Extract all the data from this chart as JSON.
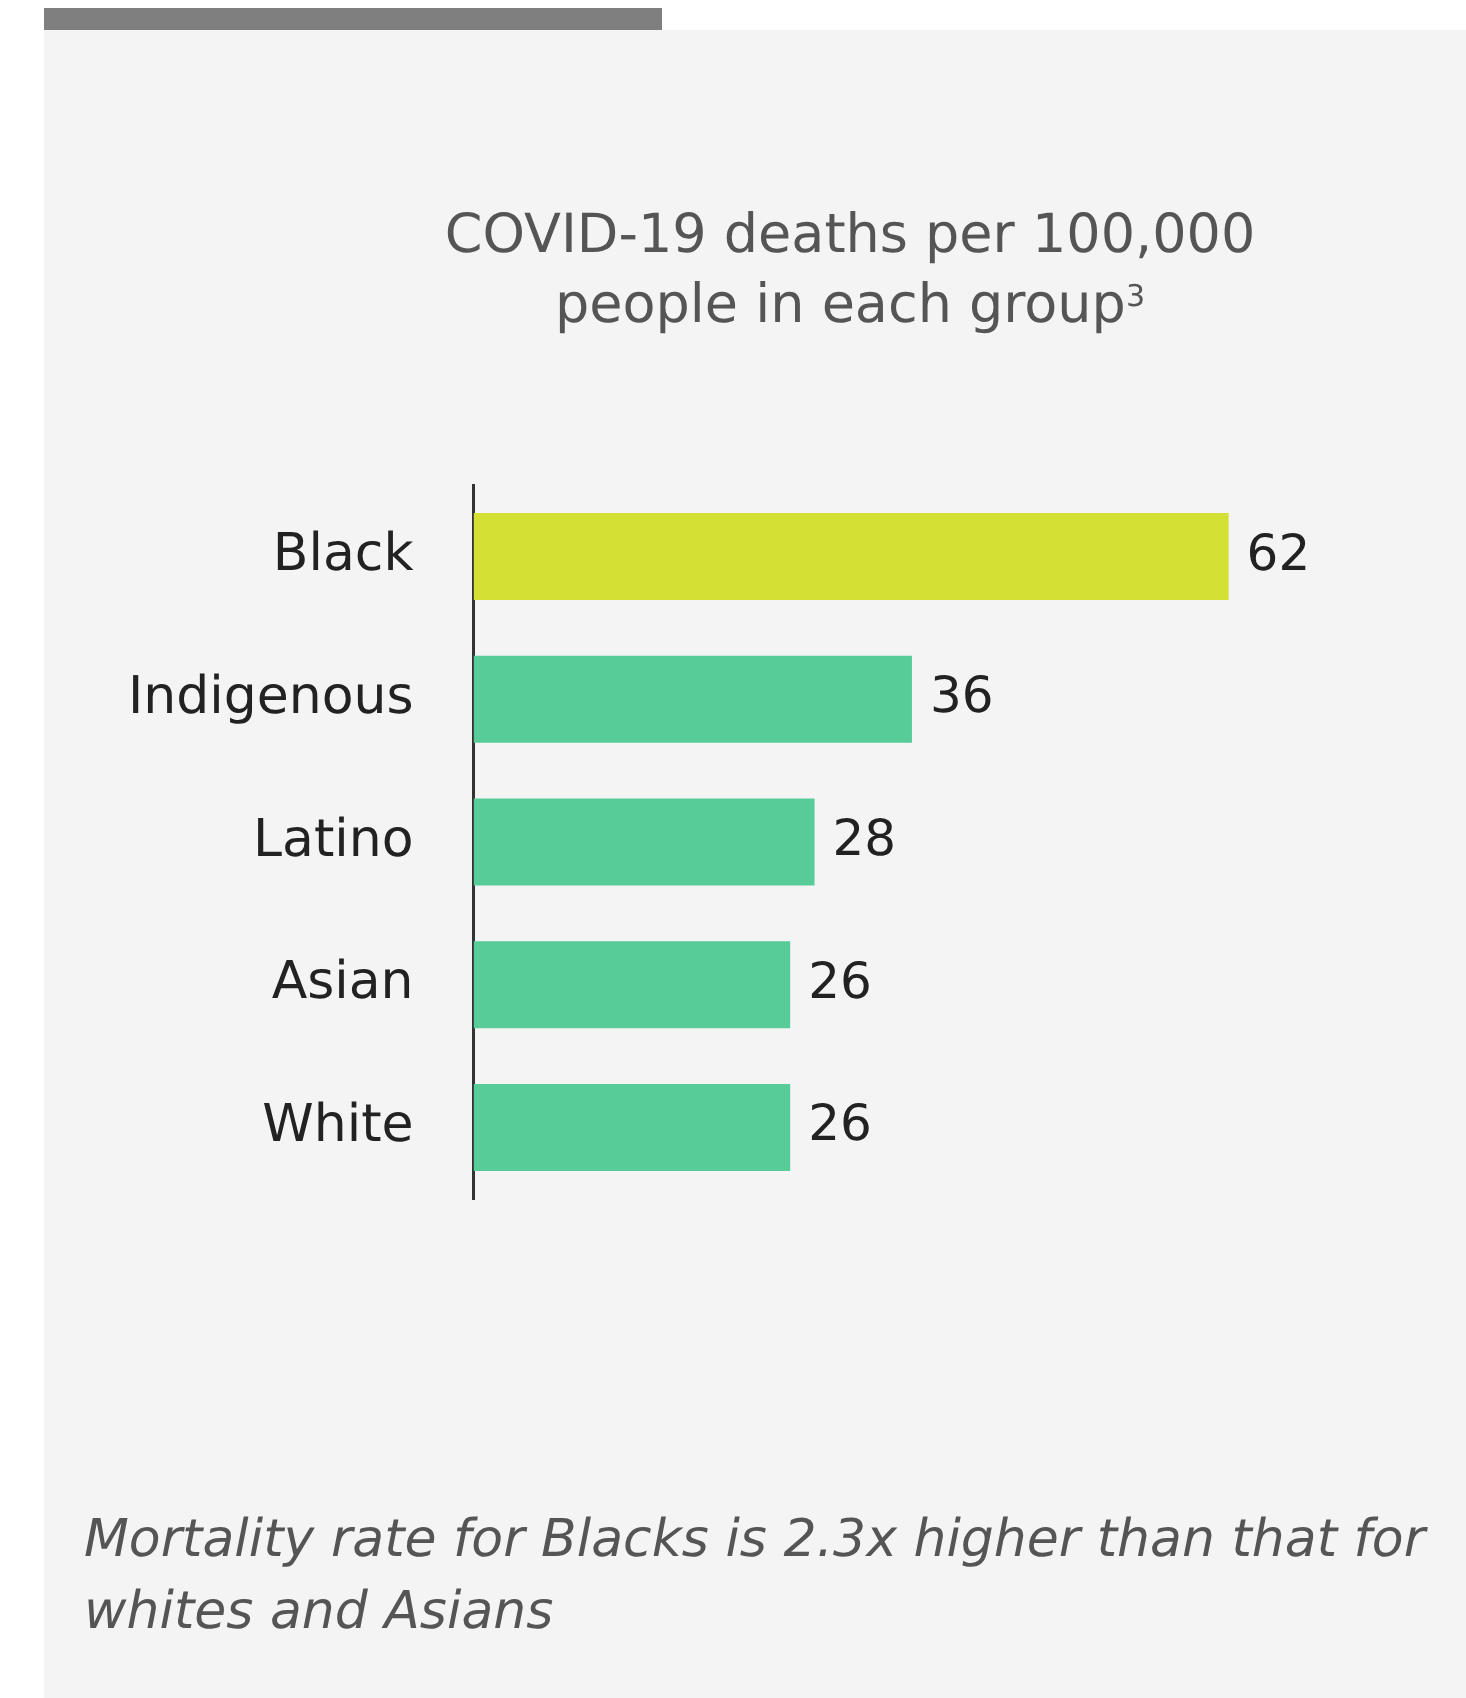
{
  "chart_data": {
    "type": "bar",
    "orientation": "horizontal",
    "title": "COVID-19 deaths per 100,000 people in each group$^{3}$",
    "categories": [
      "Black",
      "Indigenous",
      "Latino",
      "Asian",
      "White"
    ],
    "values": [
      62,
      36,
      28,
      26,
      26
    ],
    "colors": [
      "#d4e034",
      "#57cc99",
      "#57cc99",
      "#57cc99",
      "#57cc99"
    ],
    "data_labels": true,
    "annotations": [
      "Mortality rate for Blacks is 2.3x higher than that for whites and Asians"
    ]
  }
}
